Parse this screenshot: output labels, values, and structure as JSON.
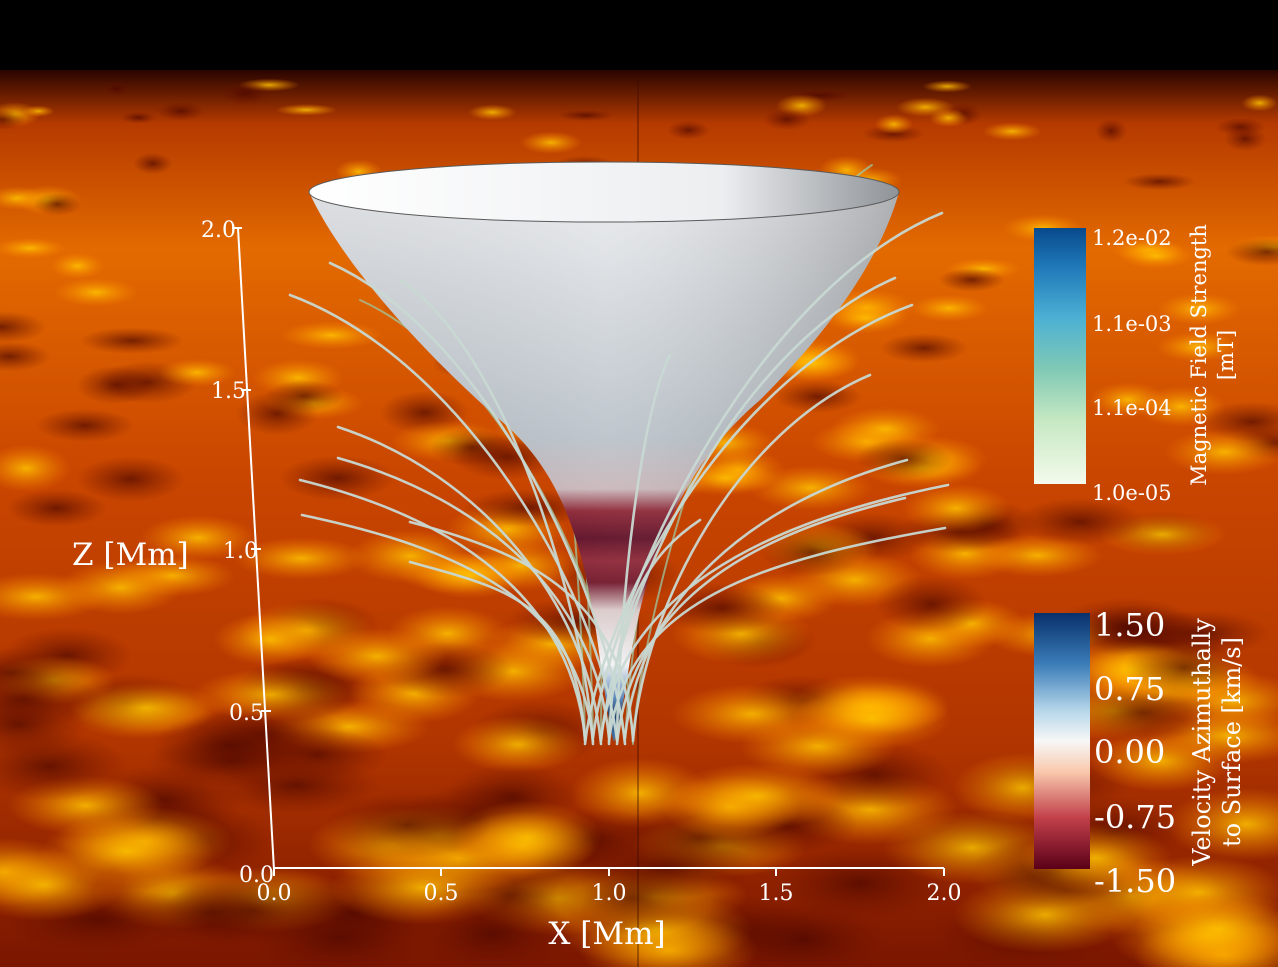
{
  "axes": {
    "x_title": "X [Mm]",
    "z_title": "Z [Mm]",
    "x_ticks": [
      "0.0",
      "0.5",
      "1.0",
      "1.5",
      "2.0"
    ],
    "z_ticks": [
      "0.0",
      "0.5",
      "1.0",
      "1.5",
      "2.0"
    ],
    "x_range": [
      0.0,
      2.0
    ],
    "z_range": [
      0.0,
      2.0
    ]
  },
  "colorbars": {
    "magnetic": {
      "title_line1": "Magnetic Field Strength",
      "title_line2": "[mT]",
      "labels": [
        "1.2e-02",
        "1.1e-03",
        "1.1e-04",
        "1.0e-05"
      ],
      "scale": "log",
      "colors": [
        "#08306b",
        "#2171b5",
        "#4eb3d3",
        "#7bccc4",
        "#ccebc5",
        "#f7fcf0"
      ]
    },
    "velocity": {
      "title_line1": "Velocity Azimuthally",
      "title_line2": "to Surface [km/s]",
      "labels": [
        "1.50",
        "0.75",
        "0.00",
        "-0.75",
        "-1.50"
      ],
      "colors": [
        "#053061",
        "#4393c3",
        "#d1e5f0",
        "#f7f7f7",
        "#fddbc7",
        "#d6604d",
        "#67001f"
      ]
    }
  },
  "scene": {
    "background_top": "#000000",
    "surface_colors": [
      "#5a0c00",
      "#a02c00",
      "#e06000",
      "#ffb000"
    ]
  }
}
